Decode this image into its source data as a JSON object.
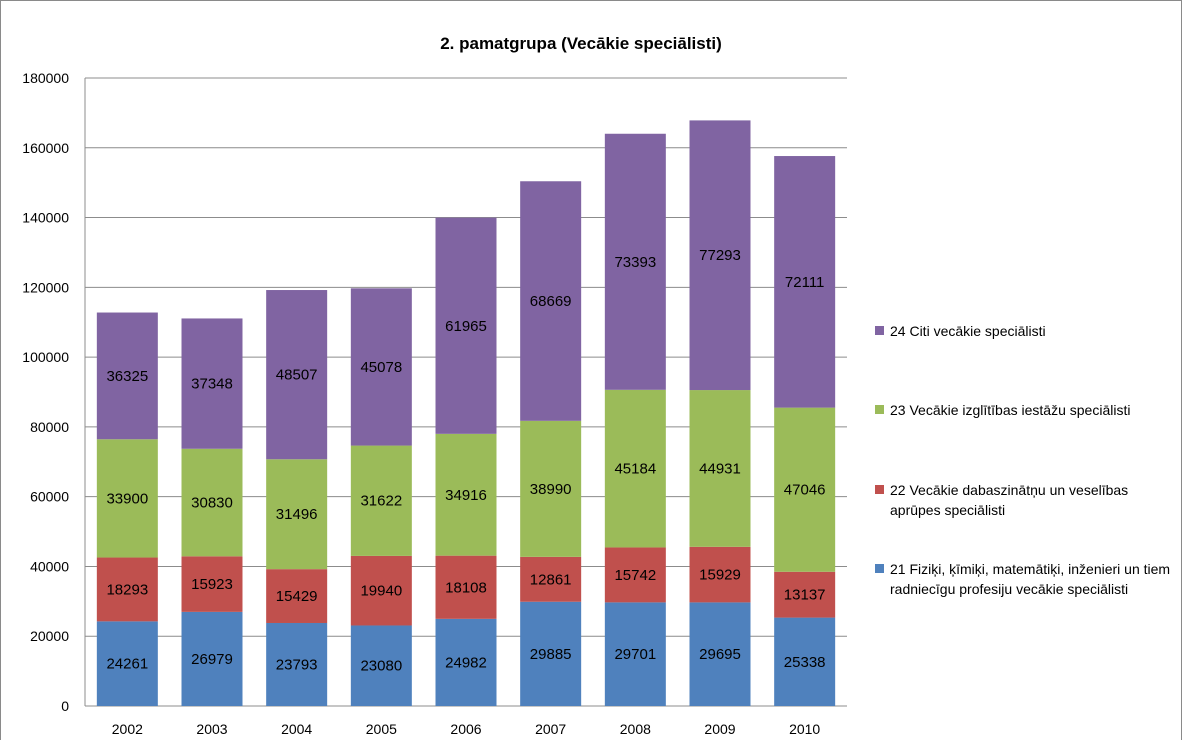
{
  "chart_data": {
    "type": "bar",
    "stacked": true,
    "title": "2. pamatgrupa (Vecākie speciālisti)",
    "categories": [
      "2002",
      "2003",
      "2004",
      "2005",
      "2006",
      "2007",
      "2008",
      "2009",
      "2010"
    ],
    "ylim": [
      0,
      180000
    ],
    "yticks": [
      "0",
      "20000",
      "40000",
      "60000",
      "80000",
      "100000",
      "120000",
      "140000",
      "160000",
      "180000"
    ],
    "grid": true,
    "legend_position": "right",
    "series": [
      {
        "name": "21 Fiziķi, ķīmiķi, matemātiķi, inženieri un tiem radniecīgu profesiju vecākie speciālisti",
        "color": "#4f81bd",
        "values": [
          24261,
          26979,
          23793,
          23080,
          24982,
          29885,
          29701,
          29695,
          25338
        ]
      },
      {
        "name": "22 Vecākie dabaszinātņu un veselības aprūpes speciālisti",
        "color": "#c0504d",
        "values": [
          18293,
          15923,
          15429,
          19940,
          18108,
          12861,
          15742,
          15929,
          13137
        ]
      },
      {
        "name": "23 Vecākie izglītības iestāžu speciālisti",
        "color": "#9bbb59",
        "values": [
          33900,
          30830,
          31496,
          31622,
          34916,
          38990,
          45184,
          44931,
          47046
        ]
      },
      {
        "name": "24 Citi vecākie speciālisti",
        "color": "#8064a2",
        "values": [
          36325,
          37348,
          48507,
          45078,
          61965,
          68669,
          73393,
          77293,
          72111
        ]
      }
    ]
  }
}
